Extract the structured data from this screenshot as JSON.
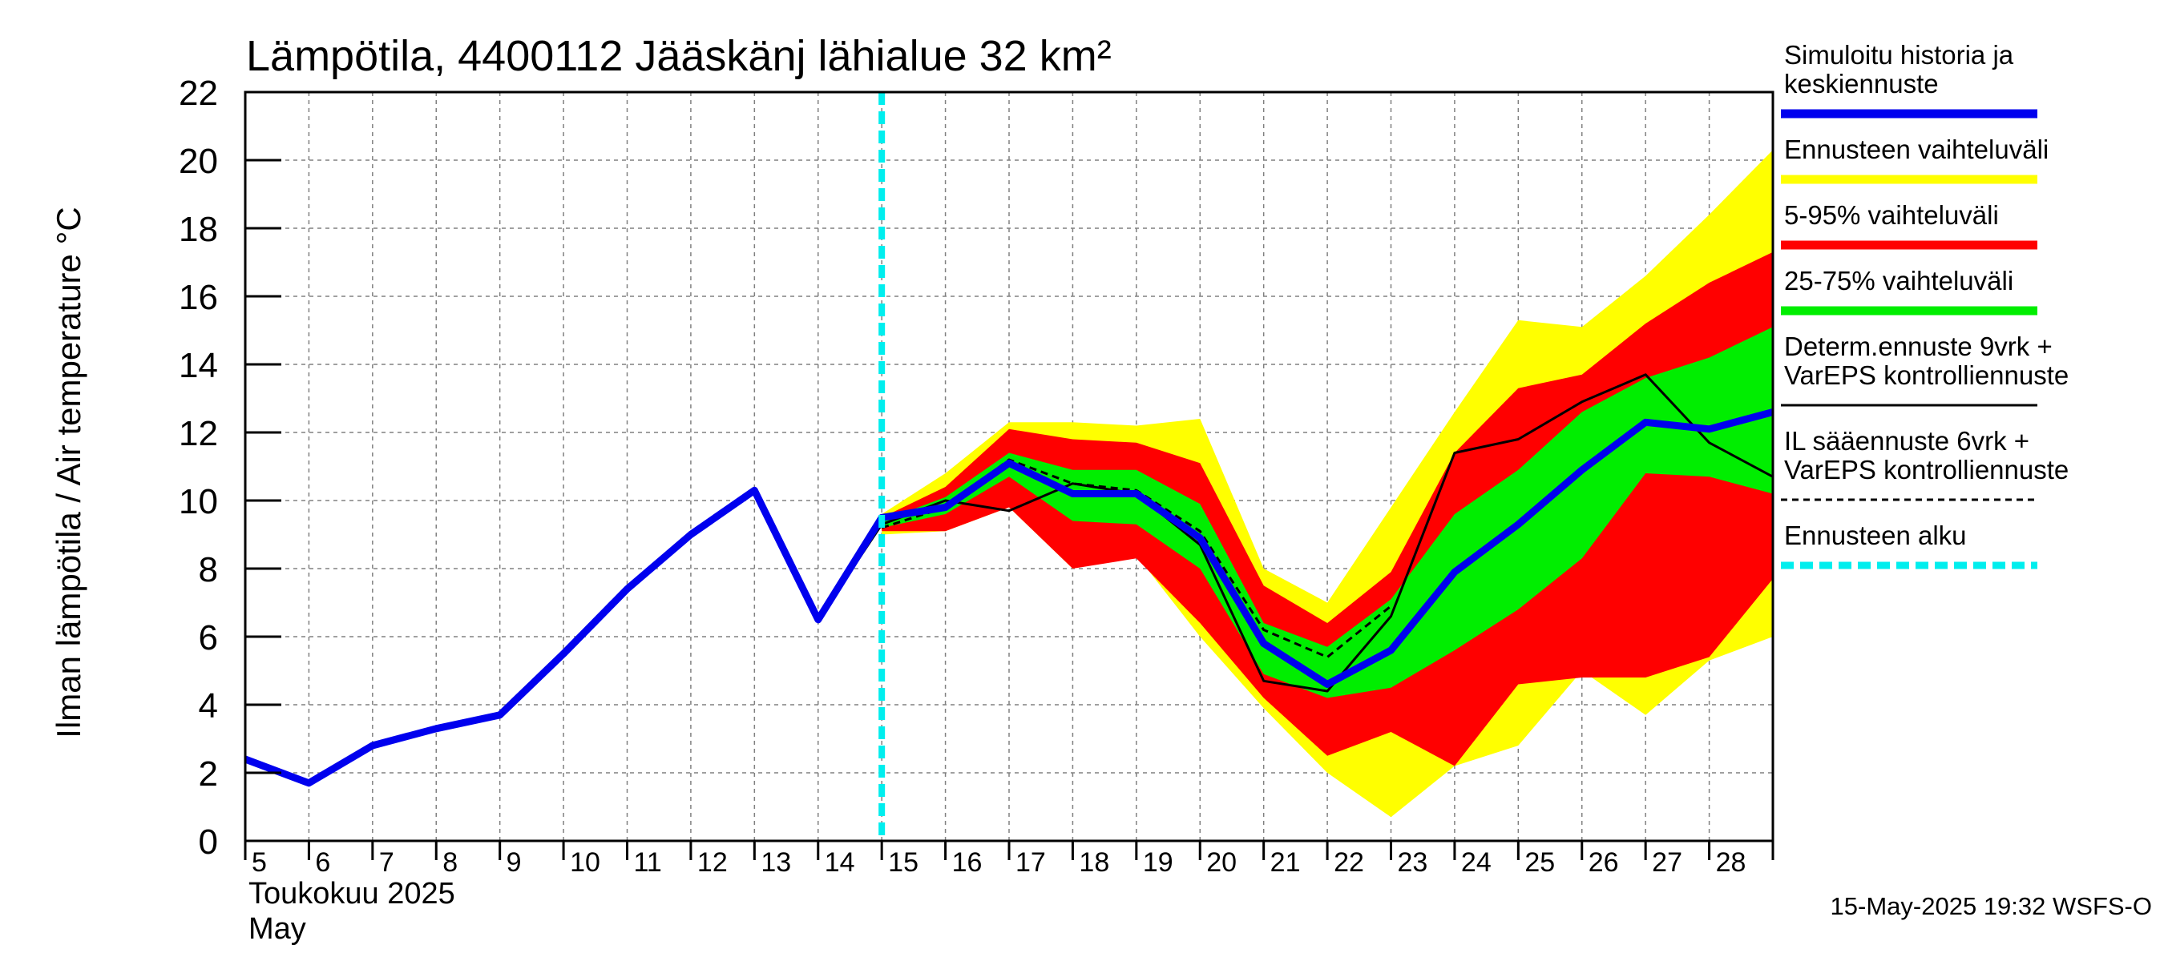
{
  "chart_data": {
    "type": "line",
    "title": "Lämpötila, 4400112 Jääskänj lähialue 32 km²",
    "ylabel": "Ilman lämpötila / Air temperature   °C",
    "ylim": [
      0,
      22
    ],
    "yticks": [
      "0",
      "2",
      "4",
      "6",
      "8",
      "10",
      "12",
      "14",
      "16",
      "18",
      "20",
      "22"
    ],
    "xlim": [
      5,
      29
    ],
    "xticks": [
      "5",
      "6",
      "7",
      "8",
      "9",
      "10",
      "11",
      "12",
      "13",
      "14",
      "15",
      "16",
      "17",
      "18",
      "19",
      "20",
      "21",
      "22",
      "23",
      "24",
      "25",
      "26",
      "27",
      "28"
    ],
    "month_label_fi": "Toukokuu  2025",
    "month_label_en": "May",
    "forecast_start": 15.0,
    "colors": {
      "history": "#0000ee",
      "range_full": "#ffff00",
      "range_5_95": "#ff0000",
      "range_25_75": "#00ee00",
      "deterministic": "#000000",
      "il_forecast": "#000000",
      "forecast_start": "#00eeee"
    },
    "bands": {
      "x": [
        15,
        16,
        17,
        18,
        19,
        20,
        21,
        22,
        23,
        24,
        25,
        26,
        27,
        28,
        29
      ],
      "full_upper": [
        9.6,
        10.8,
        12.3,
        12.3,
        12.2,
        12.4,
        8.0,
        7.0,
        9.8,
        12.6,
        15.3,
        15.1,
        16.6,
        18.4,
        20.3
      ],
      "full_lower": [
        9.0,
        9.1,
        9.8,
        8.0,
        8.4,
        6.0,
        3.9,
        2.0,
        0.7,
        2.2,
        2.8,
        5.0,
        3.7,
        5.3,
        6.0
      ],
      "p95": [
        9.5,
        10.4,
        12.1,
        11.8,
        11.7,
        11.1,
        7.5,
        6.4,
        7.9,
        11.4,
        13.3,
        13.7,
        15.2,
        16.4,
        17.3
      ],
      "p5": [
        9.1,
        9.1,
        9.8,
        8.0,
        8.3,
        6.4,
        4.2,
        2.5,
        3.2,
        2.2,
        4.6,
        4.8,
        4.8,
        5.4,
        7.7
      ],
      "p75": [
        9.4,
        10.1,
        11.4,
        10.9,
        10.9,
        9.9,
        6.4,
        5.7,
        7.1,
        9.6,
        10.9,
        12.6,
        13.6,
        14.2,
        15.1
      ],
      "p25": [
        9.2,
        9.6,
        10.7,
        9.4,
        9.3,
        8.0,
        4.9,
        4.2,
        4.5,
        5.6,
        6.8,
        8.3,
        10.8,
        10.7,
        10.2
      ]
    },
    "series": [
      {
        "name": "Simuloitu historia ja keskiennuste",
        "x": [
          5,
          6,
          7,
          8,
          9,
          10,
          11,
          12,
          13,
          14,
          15,
          16,
          17,
          18,
          19,
          20,
          21,
          22,
          23,
          24,
          25,
          26,
          27,
          28,
          29
        ],
        "y": [
          2.4,
          1.7,
          2.8,
          3.3,
          3.7,
          5.5,
          7.4,
          9.0,
          10.3,
          6.5,
          9.5,
          9.8,
          11.1,
          10.2,
          10.2,
          8.9,
          5.8,
          4.6,
          5.6,
          7.9,
          9.3,
          10.9,
          12.3,
          12.1,
          12.6
        ]
      },
      {
        "name": "Determ.ennuste 9vrk + VarEPS kontrolliennuste",
        "x": [
          13,
          14,
          15,
          16,
          17,
          18,
          19,
          20,
          21,
          22,
          23,
          24,
          25,
          26,
          27,
          28,
          29
        ],
        "y": [
          10.3,
          6.5,
          9.3,
          10.0,
          9.7,
          10.5,
          10.2,
          8.7,
          4.7,
          4.4,
          6.6,
          11.4,
          11.8,
          12.9,
          13.7,
          11.7,
          10.7
        ]
      },
      {
        "name": "IL sääennuste 6vrk + VarEPS kontrolliennuste",
        "x": [
          15,
          16,
          17,
          18,
          19,
          20,
          21,
          22,
          23
        ],
        "y": [
          9.2,
          9.8,
          11.2,
          10.5,
          10.3,
          9.1,
          6.2,
          5.4,
          6.9
        ]
      }
    ],
    "legend": {
      "placement": "right",
      "entries": [
        {
          "lines": [
            "Simuloitu historia ja",
            "keskiennuste"
          ],
          "color": "#0000ee",
          "style": "thick"
        },
        {
          "lines": [
            "Ennusteen vaihteluväli"
          ],
          "color": "#ffff00",
          "style": "thick"
        },
        {
          "lines": [
            "5-95% vaihteluväli"
          ],
          "color": "#ff0000",
          "style": "thick"
        },
        {
          "lines": [
            "25-75% vaihteluväli"
          ],
          "color": "#00ee00",
          "style": "thick"
        },
        {
          "lines": [
            "Determ.ennuste 9vrk +",
            "VarEPS kontrolliennuste"
          ],
          "color": "#000000",
          "style": "thin"
        },
        {
          "lines": [
            "IL sääennuste 6vrk  +",
            "  VarEPS kontrolliennuste"
          ],
          "color": "#000000",
          "style": "dashed"
        },
        {
          "lines": [
            "Ennusteen alku"
          ],
          "color": "#00eeee",
          "style": "thick-dashed"
        }
      ]
    },
    "grid": true,
    "footer": "15-May-2025 19:32 WSFS-O"
  }
}
